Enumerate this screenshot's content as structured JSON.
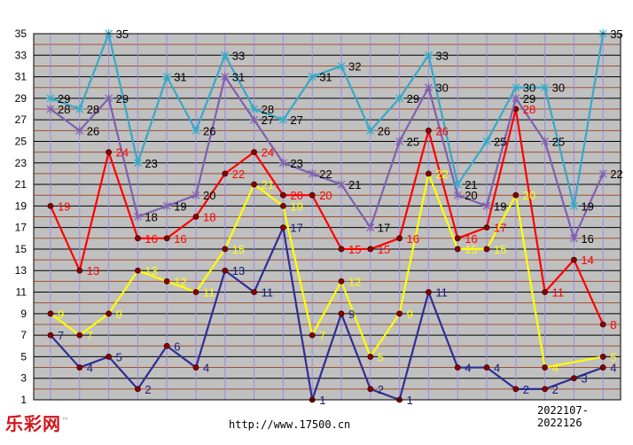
{
  "brand": {
    "name": "乐彩网",
    "tm": "™"
  },
  "footer": {
    "url": "http://www.17500.cn",
    "range": "2022107-2022126"
  },
  "chart_data": {
    "type": "line",
    "title": "",
    "xlabel": "",
    "ylabel": "",
    "ylim": [
      1,
      35
    ],
    "yticks": [
      1,
      3,
      5,
      7,
      9,
      11,
      13,
      15,
      17,
      19,
      21,
      23,
      25,
      27,
      29,
      31,
      33,
      35
    ],
    "grid": true,
    "x": [
      1,
      2,
      3,
      4,
      5,
      6,
      7,
      8,
      9,
      10,
      11,
      12,
      13,
      14,
      15,
      16,
      17,
      18,
      19,
      20
    ],
    "series": [
      {
        "color": "#2e2e96",
        "label_color": "#1a1a80",
        "marker": "dot",
        "values": [
          7,
          4,
          5,
          2,
          6,
          4,
          13,
          11,
          17,
          1,
          9,
          2,
          1,
          11,
          4,
          4,
          2,
          2,
          3,
          4
        ]
      },
      {
        "color": "#ffff00",
        "label_color": "#ffff00",
        "marker": "dot",
        "values": [
          9,
          7,
          9,
          13,
          12,
          11,
          15,
          21,
          19,
          7,
          12,
          5,
          9,
          22,
          15,
          15,
          20,
          4,
          null,
          5
        ]
      },
      {
        "color": "#ff0000",
        "label_color": "#ff0000",
        "marker": "dot",
        "values": [
          19,
          13,
          24,
          16,
          16,
          18,
          22,
          24,
          20,
          20,
          15,
          15,
          16,
          26,
          16,
          17,
          28,
          11,
          14,
          8
        ]
      },
      {
        "color": "#8060b0",
        "label_color": "#000000",
        "marker": "star",
        "values": [
          28,
          26,
          29,
          18,
          19,
          20,
          31,
          27,
          23,
          22,
          21,
          17,
          25,
          30,
          20,
          19,
          29,
          25,
          16,
          22
        ]
      },
      {
        "color": "#38a8c8",
        "label_color": "#000000",
        "marker": "star",
        "values": [
          29,
          28,
          35,
          23,
          31,
          26,
          33,
          28,
          27,
          31,
          32,
          26,
          29,
          33,
          21,
          25,
          30,
          30,
          19,
          35
        ]
      }
    ]
  }
}
